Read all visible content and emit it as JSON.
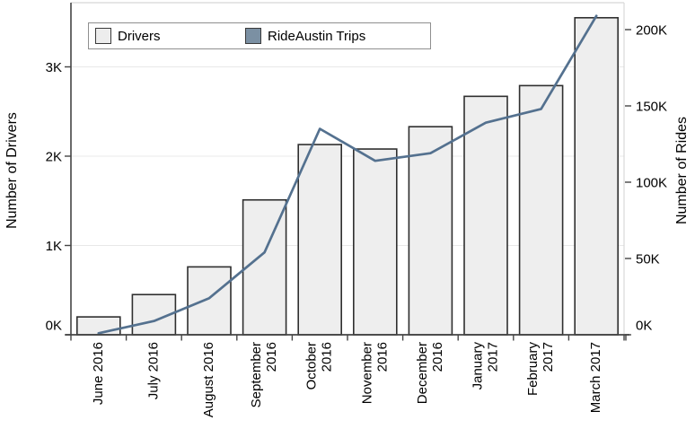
{
  "chart_data": {
    "type": "bar",
    "subtype": "dual-axis bar + line combo",
    "categories": [
      "June 2016",
      "July 2016",
      "August 2016",
      "September 2016",
      "October 2016",
      "November 2016",
      "December 2016",
      "January 2017",
      "February 2017",
      "March 2017"
    ],
    "category_label_lines": [
      [
        "June 2016"
      ],
      [
        "July 2016"
      ],
      [
        "August 2016"
      ],
      [
        "September",
        "2016"
      ],
      [
        "October",
        "2016"
      ],
      [
        "November",
        "2016"
      ],
      [
        "December",
        "2016"
      ],
      [
        "January",
        "2017"
      ],
      [
        "February",
        "2017"
      ],
      [
        "March 2017"
      ]
    ],
    "series": [
      {
        "name": "Drivers",
        "type": "bar",
        "axis": "left",
        "values": [
          200,
          450,
          760,
          1510,
          2130,
          2080,
          2330,
          2670,
          2790,
          3550
        ]
      },
      {
        "name": "RideAustin Trips",
        "type": "line",
        "axis": "right",
        "values": [
          1000,
          9000,
          24000,
          54000,
          135000,
          114000,
          119000,
          139000,
          148000,
          209000
        ]
      }
    ],
    "left_axis": {
      "label": "Number of Drivers",
      "tick_values": [
        0,
        1000,
        2000,
        3000
      ],
      "tick_labels": [
        "0K",
        "1K",
        "2K",
        "3K"
      ],
      "range": [
        0,
        3720
      ]
    },
    "right_axis": {
      "label": "Number of Rides",
      "tick_values": [
        0,
        50000,
        100000,
        150000,
        200000
      ],
      "tick_labels": [
        "0K",
        "50K",
        "100K",
        "150K",
        "200K"
      ],
      "range": [
        0,
        217600
      ]
    },
    "legend": {
      "position": "top-left",
      "items": [
        {
          "label": "Drivers",
          "swatch_color": "#ededed"
        },
        {
          "label": "RideAustin Trips",
          "swatch_color": "#7b90a3"
        }
      ]
    },
    "grid": "horizontal light gray at left-axis ticks",
    "colors": {
      "bar_fill": "#eeeeee",
      "bar_stroke": "#2f2f2f",
      "line": "#54718f",
      "axis": "#454545",
      "outer_border": "#d8d8d8",
      "grid": "#e8e8e8",
      "text": "#000000"
    }
  }
}
